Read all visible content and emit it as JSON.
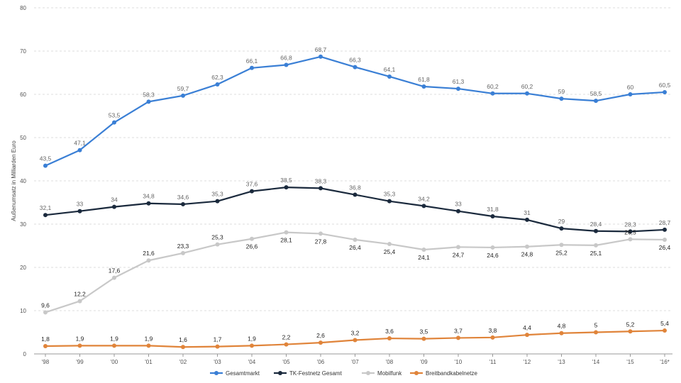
{
  "chart_data": {
    "type": "line",
    "title": "",
    "xlabel": "",
    "ylabel": "Außenumsatz in Milliarden Euro",
    "ylim": [
      0,
      80
    ],
    "yticks": [
      0,
      10,
      20,
      30,
      40,
      50,
      60,
      70,
      80
    ],
    "grid": "horizontal dashed",
    "legend": "bottom-center",
    "categories": [
      "'98",
      "'99",
      "'00",
      "'01",
      "'02",
      "'03",
      "'04",
      "'05",
      "'06",
      "'07",
      "'08",
      "'09",
      "'10",
      "'11",
      "'12",
      "'13",
      "'14",
      "'15",
      "'16*"
    ],
    "series": [
      {
        "name": "Gesamtmarkt",
        "color": "#3a7fd5",
        "label_color": "#666666",
        "values": [
          43.5,
          47.1,
          53.5,
          58.3,
          59.7,
          62.3,
          66.1,
          66.8,
          68.7,
          66.3,
          64.1,
          61.8,
          61.3,
          60.2,
          60.2,
          59,
          58.5,
          60,
          60.5
        ],
        "labels": [
          "43,5",
          "47,1",
          "53,5",
          "58,3",
          "59,7",
          "62,3",
          "66,1",
          "66,8",
          "68,7",
          "66,3",
          "64,1",
          "61,8",
          "61,3",
          "60,2",
          "60,2",
          "59",
          "58,5",
          "60",
          "60,5"
        ],
        "label_pos": [
          "above",
          "above",
          "above",
          "above",
          "above",
          "above",
          "above",
          "above",
          "above",
          "above",
          "above",
          "above",
          "above",
          "above",
          "above",
          "above",
          "above",
          "above",
          "above"
        ]
      },
      {
        "name": "TK-Festnetz Gesamt",
        "color": "#1b2a3d",
        "label_color": "#666666",
        "values": [
          32.1,
          33,
          34,
          34.8,
          34.6,
          35.3,
          37.6,
          38.5,
          38.3,
          36.8,
          35.3,
          34.2,
          33,
          31.8,
          31,
          29,
          28.4,
          28.3,
          28.7
        ],
        "labels": [
          "32,1",
          "33",
          "34",
          "34,8",
          "34,6",
          "35,3",
          "37,6",
          "38,5",
          "38,3",
          "36,8",
          "35,3",
          "34,2",
          "33",
          "31,8",
          "31",
          "29",
          "28,4",
          "28,3",
          "28,7"
        ],
        "label_pos": [
          "above",
          "above",
          "above",
          "above",
          "above",
          "above",
          "above",
          "above",
          "above",
          "above",
          "above",
          "above",
          "above",
          "above",
          "above",
          "above",
          "above",
          "above",
          "above"
        ]
      },
      {
        "name": "Mobilfunk",
        "color": "#c8c8c8",
        "label_color": "#222222",
        "values": [
          9.6,
          12.2,
          17.6,
          21.6,
          23.3,
          25.3,
          26.6,
          28.1,
          27.8,
          26.4,
          25.4,
          24.1,
          24.7,
          24.6,
          24.8,
          25.2,
          25.1,
          26.5,
          26.4
        ],
        "labels": [
          "9,6",
          "12,2",
          "17,6",
          "21,6",
          "23,3",
          "25,3",
          "26,6",
          "28,1",
          "27,8",
          "26,4",
          "25,4",
          "24,1",
          "24,7",
          "24,6",
          "24,8",
          "25,2",
          "25,1",
          "26,5",
          "26,4"
        ],
        "label_pos": [
          "above",
          "above",
          "above",
          "above",
          "above",
          "above",
          "below",
          "below",
          "below",
          "below",
          "below",
          "below",
          "below",
          "below",
          "below",
          "below",
          "below",
          "above",
          "below"
        ]
      },
      {
        "name": "Breitbandkabelnetze",
        "color": "#e0843a",
        "label_color": "#222222",
        "values": [
          1.8,
          1.9,
          1.9,
          1.9,
          1.6,
          1.7,
          1.9,
          2.2,
          2.6,
          3.2,
          3.6,
          3.5,
          3.7,
          3.8,
          4.4,
          4.8,
          5,
          5.2,
          5.4
        ],
        "labels": [
          "1,8",
          "1,9",
          "1,9",
          "1,9",
          "1,6",
          "1,7",
          "1,9",
          "2,2",
          "2,6",
          "3,2",
          "3,6",
          "3,5",
          "3,7",
          "3,8",
          "4,4",
          "4,8",
          "5",
          "5,2",
          "5,4"
        ],
        "label_pos": [
          "above",
          "above",
          "above",
          "above",
          "above",
          "above",
          "above",
          "above",
          "above",
          "above",
          "above",
          "above",
          "above",
          "above",
          "above",
          "above",
          "above",
          "above",
          "above"
        ]
      }
    ]
  }
}
